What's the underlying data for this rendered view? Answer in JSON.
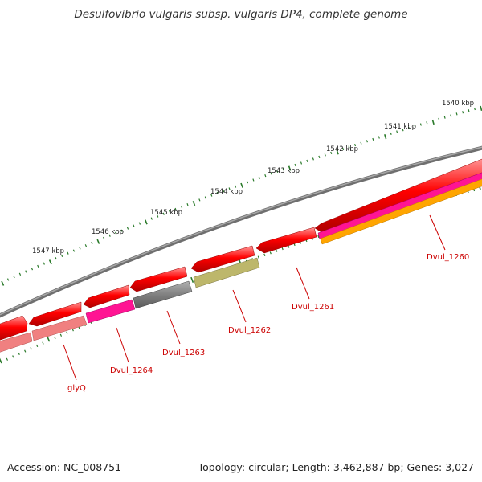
{
  "title": "Desulfovibrio vulgaris subsp. vulgaris DP4, complete genome",
  "footer": {
    "accession": "Accession: NC_008751",
    "summary": "Topology: circular; Length: 3,462,887 bp; Genes: 3,027"
  },
  "colors": {
    "backbone": "#808080",
    "cds": "#ff0000",
    "trna": "#f08080",
    "magenta": "#ff1493",
    "dark_gray": "#666666",
    "olive": "#bdb76b",
    "orange": "#ffa500",
    "tick": "#2a7a2a",
    "gene_label": "#cc0000"
  },
  "tick_labels": [
    "1540 kbp",
    "1541 kbp",
    "1542 kbp",
    "1543 kbp",
    "1544 kbp",
    "1545 kbp",
    "1546 kbp",
    "1547 kbp"
  ],
  "gene_labels": [
    "Dvul_1260",
    "Dvul_1261",
    "Dvul_1262",
    "Dvul_1263",
    "Dvul_1264",
    "glyQ"
  ]
}
